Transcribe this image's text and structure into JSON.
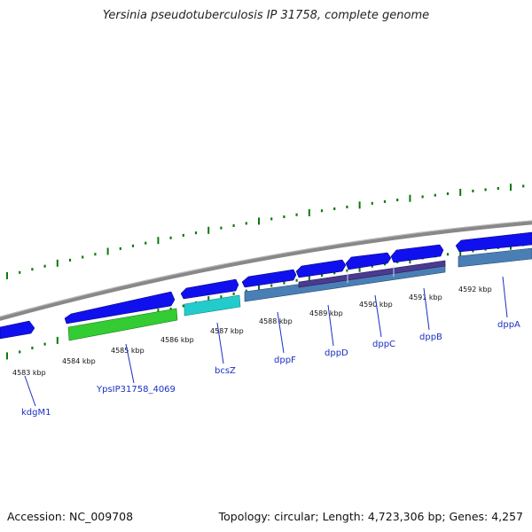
{
  "title": "Yersinia pseudotuberculosis IP 31758, complete genome",
  "footer": {
    "accession": "Accession: NC_009708",
    "summary": "Topology: circular; Length: 4,723,306 bp; Genes: 4,257"
  },
  "colors": {
    "forward_gene": "#1010ee",
    "strip_green": "#33cc33",
    "strip_cyan": "#22cccc",
    "strip_steel": "#4a7fb5",
    "strip_purple": "#4a3a90",
    "backbone": "#888888",
    "tick": "#0a7a0a",
    "label": "#1a2fc4"
  },
  "kbp_labels": [
    "4583 kbp",
    "4584 kbp",
    "4585 kbp",
    "4586 kbp",
    "4587 kbp",
    "4588 kbp",
    "4589 kbp",
    "4590 kbp",
    "4591 kbp",
    "4592 kbp"
  ],
  "genes": [
    {
      "name": "kdgM1"
    },
    {
      "name": "YpsIP31758_4069"
    },
    {
      "name": "bcsZ"
    },
    {
      "name": "dppF"
    },
    {
      "name": "dppD"
    },
    {
      "name": "dppC"
    },
    {
      "name": "dppB"
    },
    {
      "name": "dppA"
    }
  ]
}
